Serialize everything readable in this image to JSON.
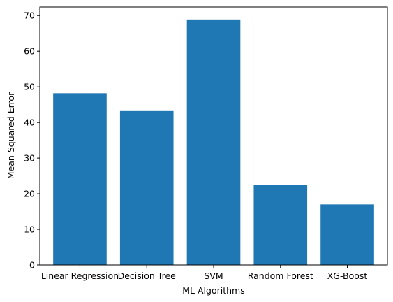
{
  "chart_data": {
    "type": "bar",
    "categories": [
      "Linear Regression",
      "Decision Tree",
      "SVM",
      "Random Forest",
      "XG-Boost"
    ],
    "values": [
      48.2,
      43.2,
      68.9,
      22.4,
      17.0
    ],
    "title": "",
    "xlabel": "ML Algorithms",
    "ylabel": "Mean Squared Error",
    "ylim": [
      0,
      72.4
    ],
    "yticks": [
      0,
      10,
      20,
      30,
      40,
      50,
      60,
      70
    ],
    "bar_color": "#1f77b4",
    "grid": false,
    "legend": "none"
  }
}
